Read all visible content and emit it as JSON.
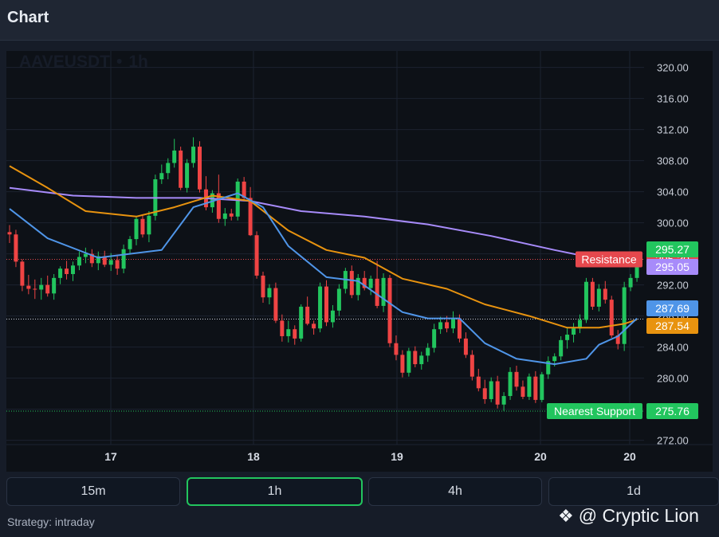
{
  "header": {
    "title": "Chart"
  },
  "timeframes": [
    {
      "label": "15m",
      "active": false
    },
    {
      "label": "1h",
      "active": true
    },
    {
      "label": "4h",
      "active": false
    },
    {
      "label": "1d",
      "active": false
    }
  ],
  "strategy": "Strategy: intraday",
  "brand": {
    "icon": "binance-diamond-icon",
    "text": "@ Cryptic Lion"
  },
  "chart_data": {
    "type": "candlestick",
    "symbol": "AAVEUSDT",
    "interval": "1h",
    "ylim": [
      270,
      321.5
    ],
    "y_ticks": [
      "272.00",
      "276.00",
      "280.00",
      "284.00",
      "288.00",
      "292.00",
      "296.00",
      "300.00",
      "304.00",
      "308.00",
      "312.00",
      "316.00",
      "320.00"
    ],
    "x_labels": [
      "17",
      "18",
      "19",
      "20",
      "20"
    ],
    "colors": {
      "up": "#22c55e",
      "down": "#ef4444",
      "ma_fast": "#4f95e8",
      "ma_mid": "#e8930f",
      "ma_slow": "#a78bfa",
      "background": "#0d1117",
      "grid": "#1c2230"
    },
    "levels": [
      {
        "label": "Resistance",
        "value": "295.30",
        "price": 295.3,
        "color": "#e5484d",
        "style": "dotted"
      },
      {
        "label": "Nearest Support",
        "value": "275.76",
        "price": 275.76,
        "color": "#22c55e",
        "style": "dotted"
      }
    ],
    "last_prices": [
      {
        "value": "295.27",
        "price": 295.27,
        "color": "#22c55e"
      },
      {
        "value": "295.05",
        "price": 295.05,
        "color": "#a78bfa"
      },
      {
        "value": "287.69",
        "price": 287.69,
        "color": "#4f95e8"
      },
      {
        "value": "287.54",
        "price": 287.54,
        "color": "#e8930f"
      }
    ],
    "candles": [
      [
        298.8,
        299.7,
        297.4,
        298.5
      ],
      [
        298.5,
        299.1,
        294.3,
        295.0
      ],
      [
        295.0,
        295.3,
        291.2,
        291.9
      ],
      [
        291.9,
        293.3,
        290.8,
        291.5
      ],
      [
        291.5,
        292.7,
        290.2,
        291.4
      ],
      [
        291.4,
        292.9,
        290.1,
        292.0
      ],
      [
        292.0,
        293.2,
        290.5,
        290.9
      ],
      [
        290.9,
        293.4,
        290.1,
        292.9
      ],
      [
        292.9,
        294.4,
        292.1,
        294.1
      ],
      [
        294.1,
        295.1,
        292.7,
        293.4
      ],
      [
        293.4,
        295.0,
        292.5,
        294.5
      ],
      [
        294.5,
        296.3,
        293.9,
        295.6
      ],
      [
        295.6,
        296.8,
        294.8,
        296.0
      ],
      [
        296.0,
        296.6,
        294.3,
        294.8
      ],
      [
        294.8,
        296.3,
        293.9,
        295.7
      ],
      [
        295.7,
        296.4,
        294.3,
        294.6
      ],
      [
        294.6,
        296.1,
        293.8,
        295.2
      ],
      [
        295.2,
        295.9,
        293.3,
        294.1
      ],
      [
        294.1,
        297.2,
        293.5,
        296.6
      ],
      [
        296.6,
        298.3,
        295.9,
        297.9
      ],
      [
        297.9,
        300.9,
        297.1,
        300.5
      ],
      [
        300.5,
        301.1,
        298.1,
        298.5
      ],
      [
        298.5,
        301.5,
        297.5,
        300.9
      ],
      [
        300.9,
        306.2,
        300.3,
        305.6
      ],
      [
        305.6,
        307.5,
        305.0,
        306.4
      ],
      [
        306.4,
        308.3,
        305.6,
        307.7
      ],
      [
        307.7,
        310.8,
        307.1,
        309.3
      ],
      [
        309.3,
        309.8,
        304.2,
        304.5
      ],
      [
        304.5,
        308.2,
        303.9,
        307.7
      ],
      [
        307.7,
        311.0,
        307.1,
        309.8
      ],
      [
        309.8,
        310.5,
        303.9,
        304.3
      ],
      [
        304.3,
        306.0,
        301.6,
        302.0
      ],
      [
        302.0,
        304.2,
        301.3,
        303.8
      ],
      [
        303.8,
        306.2,
        300.0,
        300.5
      ],
      [
        300.5,
        301.9,
        299.6,
        301.2
      ],
      [
        301.2,
        301.8,
        300.3,
        300.8
      ],
      [
        300.8,
        305.7,
        300.3,
        305.3
      ],
      [
        305.3,
        305.9,
        302.8,
        303.2
      ],
      [
        303.2,
        304.6,
        298.3,
        298.4
      ],
      [
        298.4,
        298.9,
        292.8,
        293.2
      ],
      [
        293.2,
        293.7,
        289.7,
        290.4
      ],
      [
        290.4,
        292.1,
        289.5,
        291.6
      ],
      [
        291.6,
        292.3,
        287.1,
        287.4
      ],
      [
        287.4,
        288.2,
        284.7,
        285.4
      ],
      [
        285.4,
        287.4,
        284.6,
        286.3
      ],
      [
        286.3,
        286.8,
        284.3,
        285.1
      ],
      [
        285.1,
        289.5,
        284.7,
        289.2
      ],
      [
        289.2,
        290.5,
        286.8,
        287.0
      ],
      [
        287.0,
        287.4,
        285.6,
        286.4
      ],
      [
        286.4,
        292.3,
        285.9,
        291.8
      ],
      [
        291.8,
        292.6,
        286.7,
        287.2
      ],
      [
        287.2,
        289.4,
        286.5,
        288.7
      ],
      [
        288.7,
        292.1,
        288.0,
        291.5
      ],
      [
        291.5,
        294.2,
        290.9,
        293.8
      ],
      [
        293.8,
        294.5,
        290.3,
        290.7
      ],
      [
        290.7,
        293.4,
        290.0,
        292.9
      ],
      [
        292.9,
        293.8,
        291.3,
        291.6
      ],
      [
        291.6,
        293.2,
        290.7,
        292.8
      ],
      [
        292.8,
        295.1,
        289.0,
        289.3
      ],
      [
        289.3,
        293.5,
        288.5,
        292.9
      ],
      [
        292.9,
        293.3,
        284.0,
        284.5
      ],
      [
        284.5,
        285.5,
        282.3,
        283.0
      ],
      [
        283.0,
        283.6,
        280.1,
        280.7
      ],
      [
        280.7,
        283.9,
        280.2,
        283.5
      ],
      [
        283.5,
        284.1,
        281.4,
        281.8
      ],
      [
        281.8,
        283.4,
        281.1,
        282.9
      ],
      [
        282.9,
        284.5,
        282.1,
        283.9
      ],
      [
        283.9,
        287.0,
        283.3,
        286.3
      ],
      [
        286.3,
        287.9,
        285.7,
        287.2
      ],
      [
        287.2,
        288.0,
        285.9,
        286.4
      ],
      [
        286.4,
        288.6,
        285.8,
        287.7
      ],
      [
        287.7,
        288.2,
        284.6,
        285.1
      ],
      [
        285.1,
        285.9,
        282.6,
        283.0
      ],
      [
        283.0,
        283.6,
        279.7,
        280.2
      ],
      [
        280.2,
        281.2,
        278.3,
        278.7
      ],
      [
        278.7,
        279.8,
        276.7,
        277.3
      ],
      [
        277.3,
        280.1,
        276.9,
        279.6
      ],
      [
        279.6,
        280.3,
        276.1,
        276.6
      ],
      [
        276.6,
        278.2,
        275.8,
        277.7
      ],
      [
        277.7,
        281.4,
        277.2,
        280.8
      ],
      [
        280.8,
        281.6,
        278.4,
        278.9
      ],
      [
        278.9,
        279.7,
        277.3,
        277.6
      ],
      [
        277.6,
        280.6,
        277.2,
        280.2
      ],
      [
        280.2,
        280.9,
        276.8,
        277.2
      ],
      [
        277.2,
        280.8,
        276.9,
        280.5
      ],
      [
        280.5,
        282.8,
        279.9,
        282.2
      ],
      [
        282.2,
        283.2,
        281.5,
        282.8
      ],
      [
        282.8,
        285.4,
        282.3,
        284.9
      ],
      [
        284.9,
        286.6,
        283.8,
        285.6
      ],
      [
        285.6,
        287.1,
        284.6,
        286.4
      ],
      [
        286.4,
        288.2,
        285.8,
        287.5
      ],
      [
        287.5,
        292.9,
        287.1,
        292.4
      ],
      [
        292.4,
        292.9,
        288.8,
        289.2
      ],
      [
        289.2,
        292.1,
        288.6,
        291.5
      ],
      [
        291.5,
        292.5,
        289.6,
        290.1
      ],
      [
        290.1,
        290.6,
        285.2,
        285.5
      ],
      [
        285.5,
        286.2,
        283.7,
        284.4
      ],
      [
        284.4,
        292.4,
        283.5,
        291.7
      ],
      [
        291.7,
        293.4,
        291.2,
        292.9
      ],
      [
        292.9,
        296.2,
        292.4,
        295.27
      ]
    ],
    "ma_fast": [
      [
        0,
        301.8
      ],
      [
        6,
        298.0
      ],
      [
        14,
        295.5
      ],
      [
        24,
        296.5
      ],
      [
        29,
        302.0
      ],
      [
        36,
        303.8
      ],
      [
        40,
        302.0
      ],
      [
        44,
        297.0
      ],
      [
        50,
        293.0
      ],
      [
        55,
        292.5
      ],
      [
        62,
        288.5
      ],
      [
        66,
        287.7
      ],
      [
        71,
        287.7
      ],
      [
        75,
        284.5
      ],
      [
        80,
        282.5
      ],
      [
        86,
        281.8
      ],
      [
        91,
        282.5
      ],
      [
        93,
        284.3
      ],
      [
        96,
        285.4
      ],
      [
        99,
        287.69
      ]
    ],
    "ma_mid": [
      [
        0,
        307.3
      ],
      [
        6,
        304.5
      ],
      [
        12,
        301.5
      ],
      [
        20,
        300.8
      ],
      [
        26,
        302.0
      ],
      [
        32,
        303.5
      ],
      [
        38,
        302.8
      ],
      [
        44,
        299.0
      ],
      [
        50,
        296.5
      ],
      [
        56,
        295.5
      ],
      [
        62,
        292.8
      ],
      [
        69,
        291.5
      ],
      [
        75,
        289.5
      ],
      [
        82,
        288.0
      ],
      [
        88,
        286.5
      ],
      [
        93,
        286.5
      ],
      [
        97,
        287.0
      ],
      [
        99,
        287.54
      ]
    ],
    "ma_slow": [
      [
        0,
        304.5
      ],
      [
        10,
        303.5
      ],
      [
        20,
        303.2
      ],
      [
        30,
        303.2
      ],
      [
        38,
        302.8
      ],
      [
        46,
        301.5
      ],
      [
        56,
        300.8
      ],
      [
        66,
        299.8
      ],
      [
        76,
        298.3
      ],
      [
        86,
        296.5
      ],
      [
        92,
        295.5
      ],
      [
        96,
        295.1
      ],
      [
        99,
        295.05
      ]
    ]
  }
}
